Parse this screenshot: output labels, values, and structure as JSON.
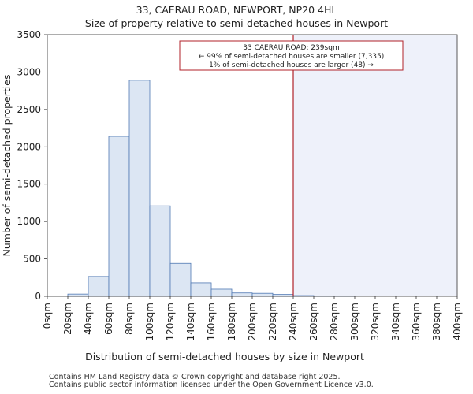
{
  "chart_data": {
    "type": "bar",
    "title": "33, CAERAU ROAD, NEWPORT, NP20 4HL",
    "subtitle": "Size of property relative to semi-detached houses in Newport",
    "xlabel": "Distribution of semi-detached houses by size in Newport",
    "ylabel": "Number of semi-detached properties",
    "bin_edges": [
      0,
      20,
      40,
      60,
      80,
      100,
      120,
      140,
      160,
      180,
      200,
      220,
      240,
      260,
      280,
      300,
      320,
      340,
      360,
      380,
      400
    ],
    "x_tick_labels": [
      "0sqm",
      "20sqm",
      "40sqm",
      "60sqm",
      "80sqm",
      "100sqm",
      "120sqm",
      "140sqm",
      "160sqm",
      "180sqm",
      "200sqm",
      "220sqm",
      "240sqm",
      "260sqm",
      "280sqm",
      "300sqm",
      "320sqm",
      "340sqm",
      "360sqm",
      "380sqm",
      "400sqm"
    ],
    "values": [
      0,
      30,
      265,
      2140,
      2890,
      1210,
      440,
      180,
      95,
      45,
      40,
      25,
      10,
      5,
      5,
      0,
      0,
      0,
      0,
      0
    ],
    "ylim": [
      0,
      3500
    ],
    "y_ticks": [
      0,
      500,
      1000,
      1500,
      2000,
      2500,
      3000,
      3500
    ],
    "xlim": [
      0,
      400
    ],
    "bar_fill": "#dce6f3",
    "bar_edge": "#4f78b3",
    "highlight": {
      "x": 240,
      "line_color": "#b0222a",
      "shade_color": "#eef1fa"
    },
    "annotation": [
      "33 CAERAU ROAD: 239sqm",
      "← 99% of semi-detached houses are smaller (7,335)",
      "1% of semi-detached houses are larger (48) →"
    ]
  },
  "footer": {
    "line1": "Contains HM Land Registry data © Crown copyright and database right 2025.",
    "line2": "Contains public sector information licensed under the Open Government Licence v3.0."
  }
}
